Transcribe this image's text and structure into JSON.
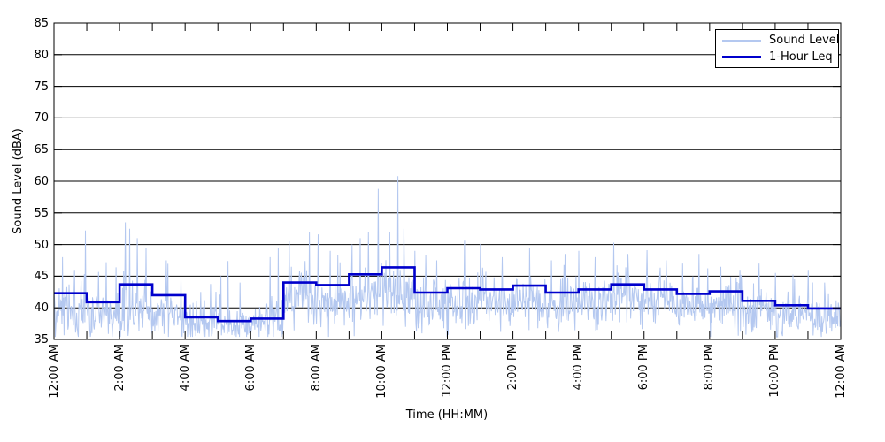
{
  "figure": {
    "background": "#ffffff"
  },
  "legend": {
    "items": [
      {
        "label": "Sound Level",
        "color": "#b4c8f0",
        "thickness": 2
      },
      {
        "label": "1-Hour Leq",
        "color": "#0000cc",
        "thickness": 3
      }
    ],
    "position": "top-right",
    "border_color": "#000000"
  },
  "chart_data": {
    "type": "line",
    "title": "",
    "xlabel": "Time (HH:MM)",
    "ylabel": "Sound Level (dBA)",
    "ylim": [
      35,
      85
    ],
    "ytick_step": 5,
    "ytick_labels": [
      "35",
      "40",
      "45",
      "50",
      "55",
      "60",
      "65",
      "70",
      "75",
      "80",
      "85"
    ],
    "xlim_minutes": [
      0,
      1440
    ],
    "xtick_label_minutes": [
      0,
      120,
      240,
      360,
      480,
      600,
      720,
      840,
      960,
      1080,
      1200,
      1320,
      1440
    ],
    "xtick_labels": [
      "12:00 AM",
      "2:00 AM",
      "4:00 AM",
      "6:00 AM",
      "8:00 AM",
      "10:00 AM",
      "12:00 PM",
      "2:00 PM",
      "4:00 PM",
      "6:00 PM",
      "8:00 PM",
      "10:00 PM",
      "12:00 AM"
    ],
    "minor_tick_every_minutes": 60,
    "grid": "horizontal-solid-black",
    "legend_position": "top-right",
    "series": [
      {
        "name": "Sound Level",
        "style": "noisy-minute-trace",
        "color": "#b4c8f0",
        "floor_dba": 35.4,
        "noise_by_hour": [
          {
            "mean": 39.8,
            "sigma": 2.2
          },
          {
            "mean": 39.3,
            "sigma": 1.9
          },
          {
            "mean": 39.6,
            "sigma": 2.3
          },
          {
            "mean": 39.6,
            "sigma": 2.0
          },
          {
            "mean": 37.6,
            "sigma": 1.6
          },
          {
            "mean": 37.0,
            "sigma": 1.3
          },
          {
            "mean": 37.4,
            "sigma": 1.7
          },
          {
            "mean": 41.3,
            "sigma": 2.1
          },
          {
            "mean": 41.0,
            "sigma": 2.2
          },
          {
            "mean": 41.8,
            "sigma": 2.2
          },
          {
            "mean": 41.8,
            "sigma": 2.3
          },
          {
            "mean": 40.2,
            "sigma": 2.0
          },
          {
            "mean": 40.8,
            "sigma": 2.1
          },
          {
            "mean": 40.6,
            "sigma": 2.1
          },
          {
            "mean": 41.0,
            "sigma": 2.1
          },
          {
            "mean": 40.3,
            "sigma": 2.0
          },
          {
            "mean": 40.8,
            "sigma": 2.1
          },
          {
            "mean": 41.3,
            "sigma": 2.2
          },
          {
            "mean": 40.8,
            "sigma": 2.0
          },
          {
            "mean": 40.2,
            "sigma": 1.9
          },
          {
            "mean": 40.3,
            "sigma": 1.9
          },
          {
            "mean": 39.3,
            "sigma": 1.8
          },
          {
            "mean": 38.7,
            "sigma": 1.7
          },
          {
            "mean": 38.3,
            "sigma": 1.7
          }
        ],
        "notable_spikes_minute_dba": [
          [
            15,
            48.0
          ],
          [
            57,
            52.2
          ],
          [
            95,
            47.2
          ],
          [
            130,
            53.5
          ],
          [
            138,
            52.5
          ],
          [
            152,
            51.0
          ],
          [
            168,
            49.5
          ],
          [
            205,
            47.5
          ],
          [
            232,
            44.5
          ],
          [
            268,
            42.5
          ],
          [
            305,
            45.0
          ],
          [
            318,
            47.4
          ],
          [
            340,
            44.0
          ],
          [
            395,
            48.0
          ],
          [
            410,
            49.5
          ],
          [
            430,
            50.5
          ],
          [
            467,
            52.0
          ],
          [
            483,
            51.6
          ],
          [
            505,
            49.0
          ],
          [
            545,
            50.0
          ],
          [
            560,
            51.0
          ],
          [
            575,
            52.0
          ],
          [
            593,
            58.8
          ],
          [
            614,
            52.0
          ],
          [
            629,
            60.8
          ],
          [
            640,
            52.5
          ],
          [
            660,
            49.0
          ],
          [
            680,
            48.3
          ],
          [
            700,
            47.5
          ],
          [
            751,
            50.6
          ],
          [
            780,
            50.1
          ],
          [
            820,
            48.0
          ],
          [
            870,
            49.5
          ],
          [
            910,
            47.5
          ],
          [
            935,
            48.5
          ],
          [
            960,
            49.0
          ],
          [
            990,
            48.0
          ],
          [
            1024,
            50.3
          ],
          [
            1050,
            48.5
          ],
          [
            1085,
            49.1
          ],
          [
            1120,
            47.5
          ],
          [
            1150,
            47.0
          ],
          [
            1180,
            48.5
          ],
          [
            1220,
            46.5
          ],
          [
            1255,
            46.0
          ],
          [
            1290,
            47.0
          ],
          [
            1320,
            45.5
          ],
          [
            1355,
            44.5
          ],
          [
            1380,
            46.0
          ],
          [
            1410,
            44.0
          ]
        ],
        "random_spike_probability": 0.02,
        "random_spike_add_range": [
          3.5,
          7.5
        ]
      },
      {
        "name": "1-Hour Leq",
        "style": "step-hourly",
        "color": "#0000cc",
        "hour_start_labels": [
          "12 AM",
          "1 AM",
          "2 AM",
          "3 AM",
          "4 AM",
          "5 AM",
          "6 AM",
          "7 AM",
          "8 AM",
          "9 AM",
          "10 AM",
          "11 AM",
          "12 PM",
          "1 PM",
          "2 PM",
          "3 PM",
          "4 PM",
          "5 PM",
          "6 PM",
          "7 PM",
          "8 PM",
          "9 PM",
          "10 PM",
          "11 PM"
        ],
        "values": [
          42.3,
          40.9,
          43.7,
          42.0,
          38.5,
          37.9,
          38.3,
          44.0,
          43.6,
          45.3,
          46.4,
          42.4,
          43.1,
          42.9,
          43.5,
          42.4,
          42.9,
          43.7,
          42.9,
          42.2,
          42.6,
          41.1,
          40.4,
          39.9
        ]
      }
    ]
  }
}
